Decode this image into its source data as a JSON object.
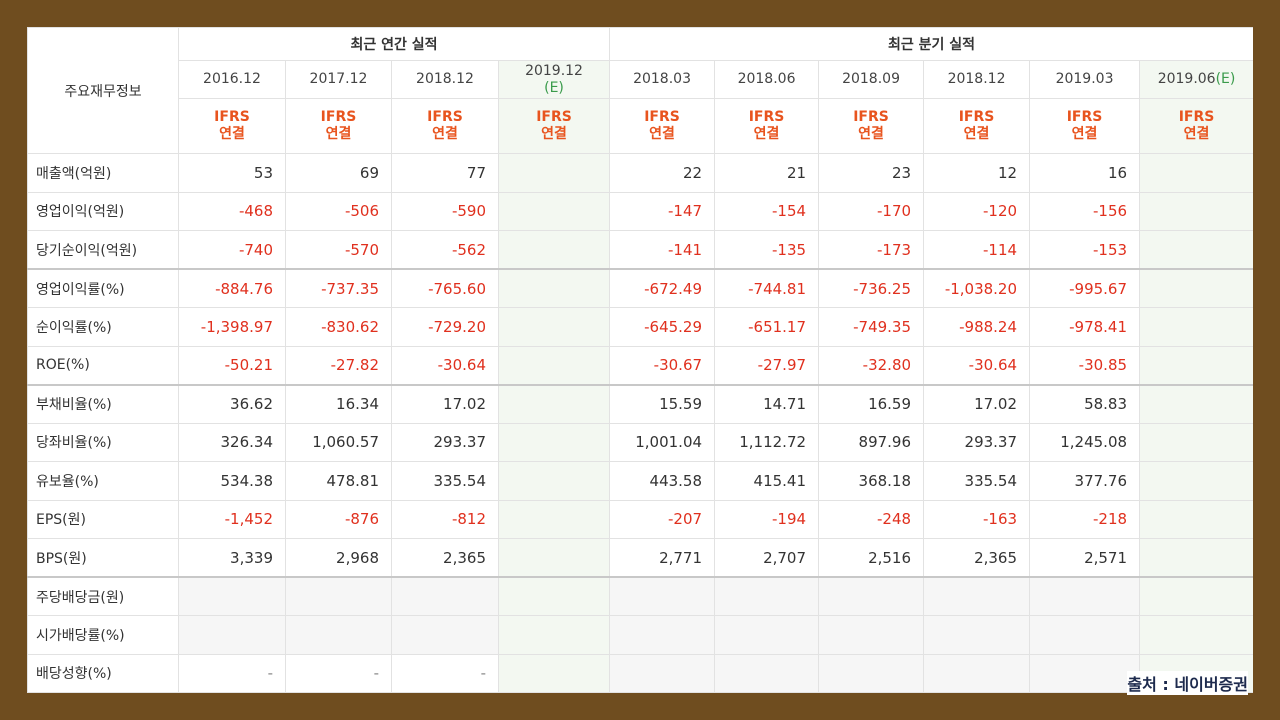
{
  "table": {
    "corner": "주요재무정보",
    "groups": [
      {
        "label": "최근 연간 실적",
        "columns": [
          {
            "period": "2016.12",
            "standard": "IFRS",
            "basis": "연결"
          },
          {
            "period": "2017.12",
            "standard": "IFRS",
            "basis": "연결"
          },
          {
            "period": "2018.12",
            "standard": "IFRS",
            "basis": "연결"
          },
          {
            "period": "2019.12",
            "estimate": "(E)",
            "standard": "IFRS",
            "basis": "연결"
          }
        ]
      },
      {
        "label": "최근 분기 실적",
        "columns": [
          {
            "period": "2018.03",
            "standard": "IFRS",
            "basis": "연결"
          },
          {
            "period": "2018.06",
            "standard": "IFRS",
            "basis": "연결"
          },
          {
            "period": "2018.09",
            "standard": "IFRS",
            "basis": "연결"
          },
          {
            "period": "2018.12",
            "standard": "IFRS",
            "basis": "연결"
          },
          {
            "period": "2019.03",
            "standard": "IFRS",
            "basis": "연결"
          },
          {
            "period": "2019.06",
            "estimate": "(E)",
            "standard": "IFRS",
            "basis": "연결"
          }
        ]
      }
    ],
    "rows": [
      {
        "label": "매출액(억원)",
        "cells": [
          "53",
          "69",
          "77",
          null,
          "22",
          "21",
          "23",
          "12",
          "16",
          null
        ]
      },
      {
        "label": "영업이익(억원)",
        "cells": [
          "-468",
          "-506",
          "-590",
          null,
          "-147",
          "-154",
          "-170",
          "-120",
          "-156",
          null
        ]
      },
      {
        "label": "당기순이익(억원)",
        "cells": [
          "-740",
          "-570",
          "-562",
          null,
          "-141",
          "-135",
          "-173",
          "-114",
          "-153",
          null
        ]
      },
      {
        "label": "영업이익률(%)",
        "cells": [
          "-884.76",
          "-737.35",
          "-765.60",
          null,
          "-672.49",
          "-744.81",
          "-736.25",
          "-1,038.20",
          "-995.67",
          null
        ]
      },
      {
        "label": "순이익률(%)",
        "cells": [
          "-1,398.97",
          "-830.62",
          "-729.20",
          null,
          "-645.29",
          "-651.17",
          "-749.35",
          "-988.24",
          "-978.41",
          null
        ]
      },
      {
        "label": "ROE(%)",
        "cells": [
          "-50.21",
          "-27.82",
          "-30.64",
          null,
          "-30.67",
          "-27.97",
          "-32.80",
          "-30.64",
          "-30.85",
          null
        ]
      },
      {
        "label": "부채비율(%)",
        "cells": [
          "36.62",
          "16.34",
          "17.02",
          null,
          "15.59",
          "14.71",
          "16.59",
          "17.02",
          "58.83",
          null
        ]
      },
      {
        "label": "당좌비율(%)",
        "cells": [
          "326.34",
          "1,060.57",
          "293.37",
          null,
          "1,001.04",
          "1,112.72",
          "897.96",
          "293.37",
          "1,245.08",
          null
        ]
      },
      {
        "label": "유보율(%)",
        "cells": [
          "534.38",
          "478.81",
          "335.54",
          null,
          "443.58",
          "415.41",
          "368.18",
          "335.54",
          "377.76",
          null
        ]
      },
      {
        "label": "EPS(원)",
        "cells": [
          "-1,452",
          "-876",
          "-812",
          null,
          "-207",
          "-194",
          "-248",
          "-163",
          "-218",
          null
        ]
      },
      {
        "label": "BPS(원)",
        "cells": [
          "3,339",
          "2,968",
          "2,365",
          null,
          "2,771",
          "2,707",
          "2,516",
          "2,365",
          "2,571",
          null
        ]
      },
      {
        "label": "주당배당금(원)",
        "cells": [
          null,
          null,
          null,
          null,
          null,
          null,
          null,
          null,
          null,
          null
        ]
      },
      {
        "label": "시가배당률(%)",
        "cells": [
          null,
          null,
          null,
          null,
          null,
          null,
          null,
          null,
          null,
          null
        ]
      },
      {
        "label": "배당성향(%)",
        "cells": [
          "-",
          "-",
          "-",
          null,
          null,
          null,
          null,
          null,
          null,
          null
        ]
      }
    ]
  },
  "source": "출처 : 네이버증권"
}
